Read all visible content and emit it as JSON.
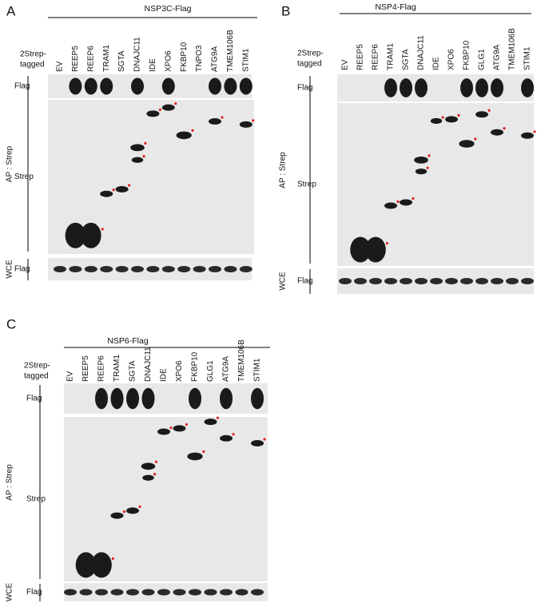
{
  "panels": [
    {
      "letter": "A",
      "title": "NSP3C-Flag",
      "tag_label": [
        "2Strep-",
        "tagged"
      ],
      "lanes": [
        "EV",
        "REEP5",
        "REEP6",
        "TRAM1",
        "SGTA",
        "DNAJC11",
        "IDE",
        "XPO6",
        "FKBP10",
        "TNPO3",
        "ATG9A",
        "TMEM106B",
        "STIM1"
      ],
      "blots": {
        "flag": "Flag",
        "strep": "Strep",
        "wce_flag": "Flag"
      },
      "ap_label": "AP : Strep",
      "wce_label": "WCE"
    },
    {
      "letter": "B",
      "title": "NSP4-Flag",
      "tag_label": [
        "2Strep-",
        "tagged"
      ],
      "lanes": [
        "EV",
        "REEP5",
        "REEP6",
        "TRAM1",
        "SGTA",
        "DNAJC11",
        "IDE",
        "XPO6",
        "FKBP10",
        "GLG1",
        "ATG9A",
        "TMEM106B",
        "STIM1"
      ],
      "blots": {
        "flag": "Flag",
        "strep": "Strep",
        "wce_flag": "Flag"
      },
      "ap_label": "AP : Strep",
      "wce_label": "WCE"
    },
    {
      "letter": "C",
      "title": "NSP6-Flag",
      "tag_label": [
        "2Strep-",
        "tagged"
      ],
      "lanes": [
        "EV",
        "REEP5",
        "REEP6",
        "TRAM1",
        "SGTA",
        "DNAJC11",
        "IDE",
        "XPO6",
        "FKBP10",
        "GLG1",
        "ATG9A",
        "TMEM106B",
        "STIM1"
      ],
      "blots": {
        "flag": "Flag",
        "strep": "Strep",
        "wce_flag": "Flag"
      },
      "ap_label": "AP : Strep",
      "wce_label": "WCE"
    }
  ]
}
